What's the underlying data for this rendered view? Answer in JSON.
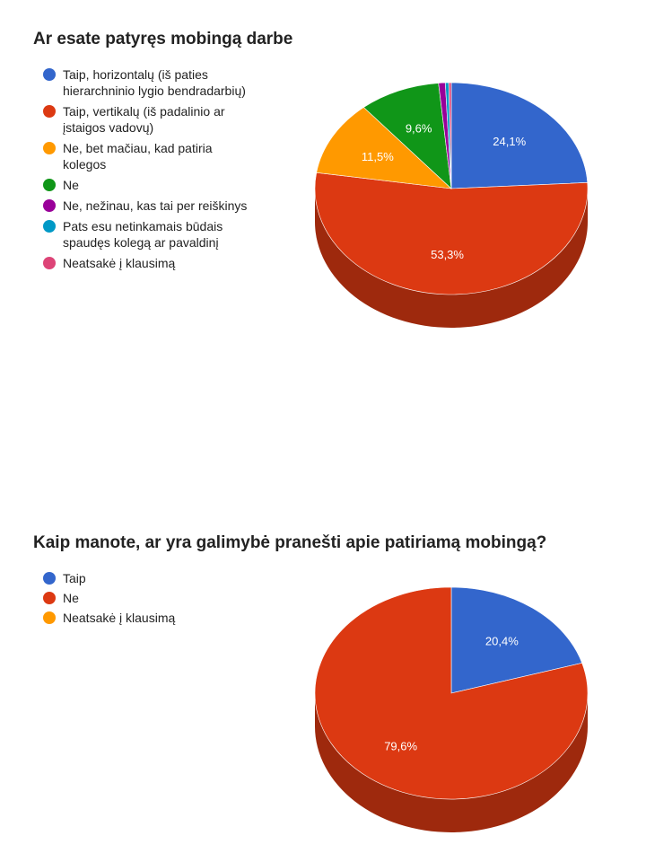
{
  "chart_data": [
    {
      "type": "pie",
      "title": "Ar esate patyręs mobingą darbe",
      "legend_position": "left",
      "slices": [
        {
          "label": "Taip, horizontalų (iš paties hierarchninio lygio bendradarbių)",
          "value": 24.1,
          "value_label": "24,1%",
          "color": "#3366cc"
        },
        {
          "label": "Taip, vertikalų (iš padalinio ar įstaigos vadovų)",
          "value": 53.3,
          "value_label": "53,3%",
          "color": "#dc3912"
        },
        {
          "label": "Ne, bet mačiau, kad patiria kolegos",
          "value": 11.5,
          "value_label": "11,5%",
          "color": "#ff9900"
        },
        {
          "label": "Ne",
          "value": 9.6,
          "value_label": "9,6%",
          "color": "#109618"
        },
        {
          "label": "Ne, nežinau, kas tai per reiškinys",
          "value": 0.8,
          "value_label": "",
          "color": "#990099"
        },
        {
          "label": "Pats esu netinkamais būdais spaudęs kolegą ar pavaldinį",
          "value": 0.4,
          "value_label": "",
          "color": "#0099c6"
        },
        {
          "label": "Neatsakė į klausimą",
          "value": 0.3,
          "value_label": "",
          "color": "#dd4477"
        }
      ]
    },
    {
      "type": "pie",
      "title": "Kaip manote, ar yra galimybė pranešti apie patiriamą mobingą?",
      "legend_position": "left",
      "slices": [
        {
          "label": "Taip",
          "value": 20.4,
          "value_label": "20,4%",
          "color": "#3366cc"
        },
        {
          "label": "Ne",
          "value": 79.6,
          "value_label": "79,6%",
          "color": "#dc3912"
        },
        {
          "label": "Neatsakė į klausimą",
          "value": 0,
          "value_label": "",
          "color": "#ff9900"
        }
      ]
    }
  ]
}
